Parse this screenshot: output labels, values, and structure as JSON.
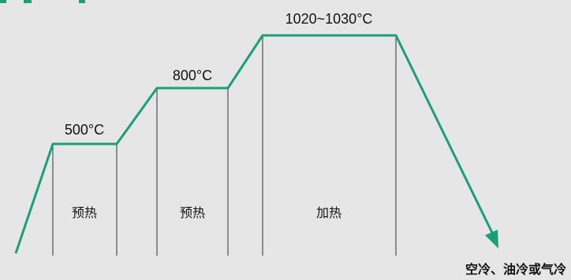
{
  "colors": {
    "background": "#e6e6e6",
    "curve": "#19a079",
    "divider": "#333333",
    "text": "#111111"
  },
  "stages": [
    {
      "temperature": "500°C",
      "phase": "预热"
    },
    {
      "temperature": "800°C",
      "phase": "预热"
    },
    {
      "temperature": "1020~1030°C",
      "phase": "加热"
    }
  ],
  "cooling": {
    "label": "空冷、油冷或气冷",
    "arrow_icon": "arrow-head-icon"
  }
}
